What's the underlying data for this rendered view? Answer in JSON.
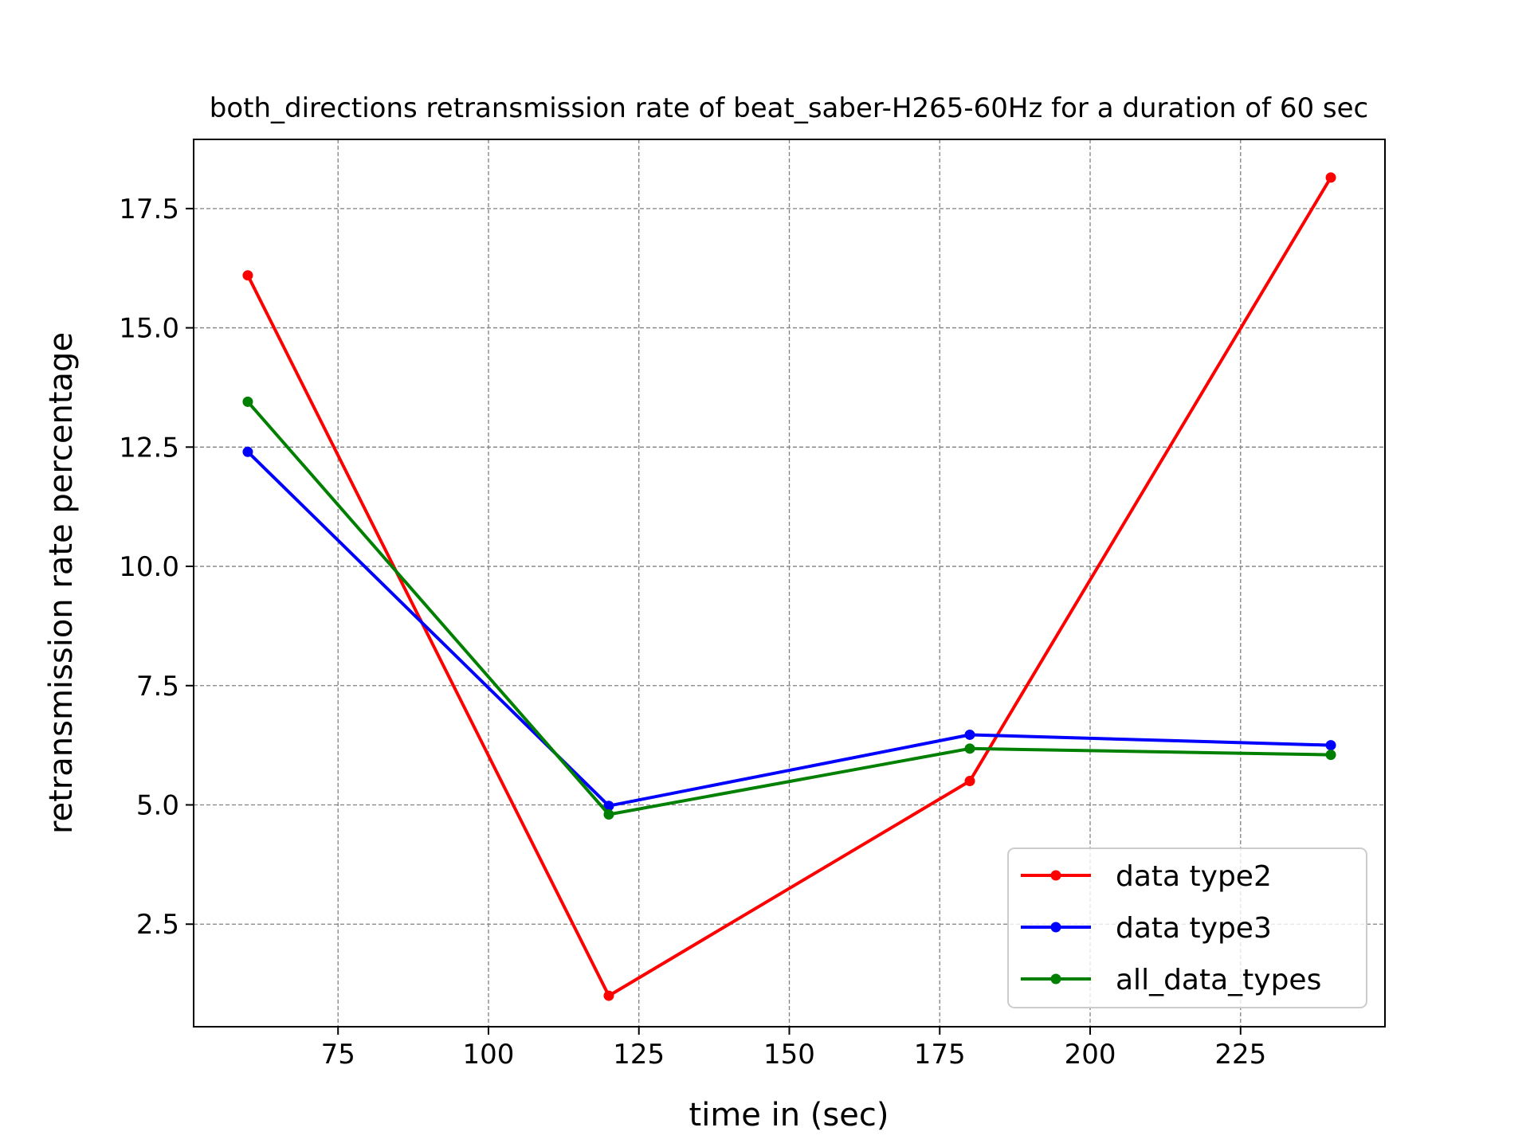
{
  "chart_data": {
    "type": "line",
    "title": "both_directions retransmission rate of beat_saber-H265-60Hz for a duration of 60 sec",
    "xlabel": "time in (sec)",
    "ylabel": "retransmission rate percentage",
    "xlim": [
      51,
      249
    ],
    "ylim": [
      0.35,
      18.95
    ],
    "x_ticks": [
      75,
      100,
      125,
      150,
      175,
      200,
      225
    ],
    "x_tick_labels": [
      "75",
      "100",
      "125",
      "150",
      "175",
      "200",
      "225"
    ],
    "y_ticks": [
      2.5,
      5.0,
      7.5,
      10.0,
      12.5,
      15.0,
      17.5
    ],
    "y_tick_labels": [
      "2.5",
      "5.0",
      "7.5",
      "10.0",
      "12.5",
      "15.0",
      "17.5"
    ],
    "grid": true,
    "legend_position": "lower-right",
    "x": [
      60,
      120,
      180,
      240
    ],
    "series": [
      {
        "name": "data type2",
        "color": "#ff0000",
        "values": [
          16.1,
          1.0,
          5.5,
          18.15
        ]
      },
      {
        "name": "data type3",
        "color": "#0000ff",
        "values": [
          12.4,
          4.98,
          6.47,
          6.25
        ]
      },
      {
        "name": "all_data_types",
        "color": "#008000",
        "values": [
          13.45,
          4.8,
          6.18,
          6.05
        ]
      }
    ]
  }
}
